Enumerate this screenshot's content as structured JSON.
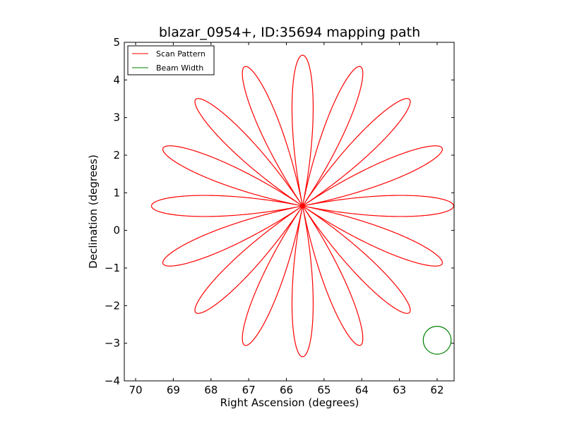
{
  "chart_data": {
    "type": "line",
    "title": "blazar_0954+, ID:35694 mapping path",
    "xlabel": "Right Ascension (degrees)",
    "ylabel": "Declination (degrees)",
    "xlim": [
      70.3,
      61.55
    ],
    "ylim": [
      -4,
      5
    ],
    "x_inverted": true,
    "xticks": [
      "70",
      "69",
      "68",
      "67",
      "66",
      "65",
      "64",
      "63",
      "62"
    ],
    "xtick_values": [
      70,
      69,
      68,
      67,
      66,
      65,
      64,
      63,
      62
    ],
    "yticks": [
      "−4",
      "−3",
      "−2",
      "−1",
      "0",
      "1",
      "2",
      "3",
      "4",
      "5"
    ],
    "ytick_values": [
      -4,
      -3,
      -2,
      -1,
      0,
      1,
      2,
      3,
      4,
      5
    ],
    "grid": false,
    "legend_position": "top-left",
    "series": [
      {
        "name": "Scan Pattern",
        "color": "#ff0000",
        "shape": "rose curve with 16 petals",
        "center": [
          65.57,
          0.65
        ],
        "petal_count": 16,
        "petal_tips": [
          [
            65.57,
            4.67
          ],
          [
            64.03,
            4.35
          ],
          [
            62.74,
            3.49
          ],
          [
            61.88,
            2.19
          ],
          [
            61.56,
            0.65
          ],
          [
            61.88,
            -0.89
          ],
          [
            62.74,
            -2.19
          ],
          [
            64.03,
            -3.05
          ],
          [
            65.57,
            -3.37
          ],
          [
            67.11,
            -3.05
          ],
          [
            68.41,
            -2.19
          ],
          [
            69.26,
            -0.89
          ],
          [
            69.58,
            0.65
          ],
          [
            69.26,
            2.19
          ],
          [
            68.41,
            3.49
          ],
          [
            67.11,
            4.35
          ]
        ]
      },
      {
        "name": "Beam Width",
        "color": "#008000",
        "shape": "circle",
        "center": [
          62.0,
          -2.92
        ],
        "radius": 0.37
      }
    ]
  }
}
